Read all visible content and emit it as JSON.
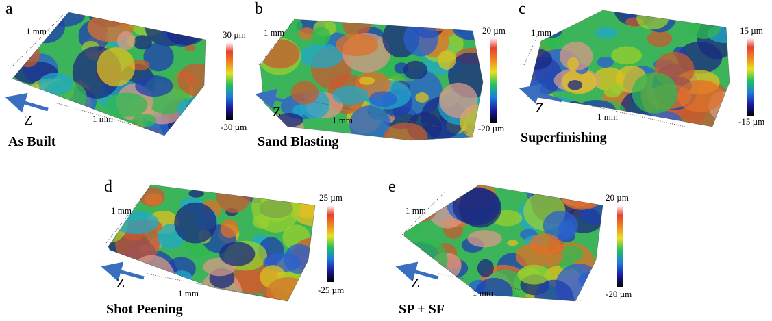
{
  "panels": [
    {
      "letter": "a",
      "title": "As Built",
      "length_labels": [
        "1 mm",
        "1 mm"
      ],
      "axis_label": "Z",
      "scale_max": "30 µm",
      "scale_min": "-30 µm"
    },
    {
      "letter": "b",
      "title": "Sand Blasting",
      "length_labels": [
        "1 mm",
        "1 mm"
      ],
      "axis_label": "Z",
      "scale_max": "20 µm",
      "scale_min": "-20 µm"
    },
    {
      "letter": "c",
      "title": "Superfinishing",
      "length_labels": [
        "1 mm",
        "1 mm"
      ],
      "axis_label": "Z",
      "scale_max": "15 µm",
      "scale_min": "-15 µm"
    },
    {
      "letter": "d",
      "title": "Shot Peening",
      "length_labels": [
        "1 mm",
        "1 mm"
      ],
      "axis_label": "Z",
      "scale_max": "25 µm",
      "scale_min": "-25 µm"
    },
    {
      "letter": "e",
      "title": "SP + SF",
      "length_labels": [
        "1 mm",
        "1 mm"
      ],
      "axis_label": "Z",
      "scale_max": "20 µm",
      "scale_min": "-20 µm"
    }
  ]
}
